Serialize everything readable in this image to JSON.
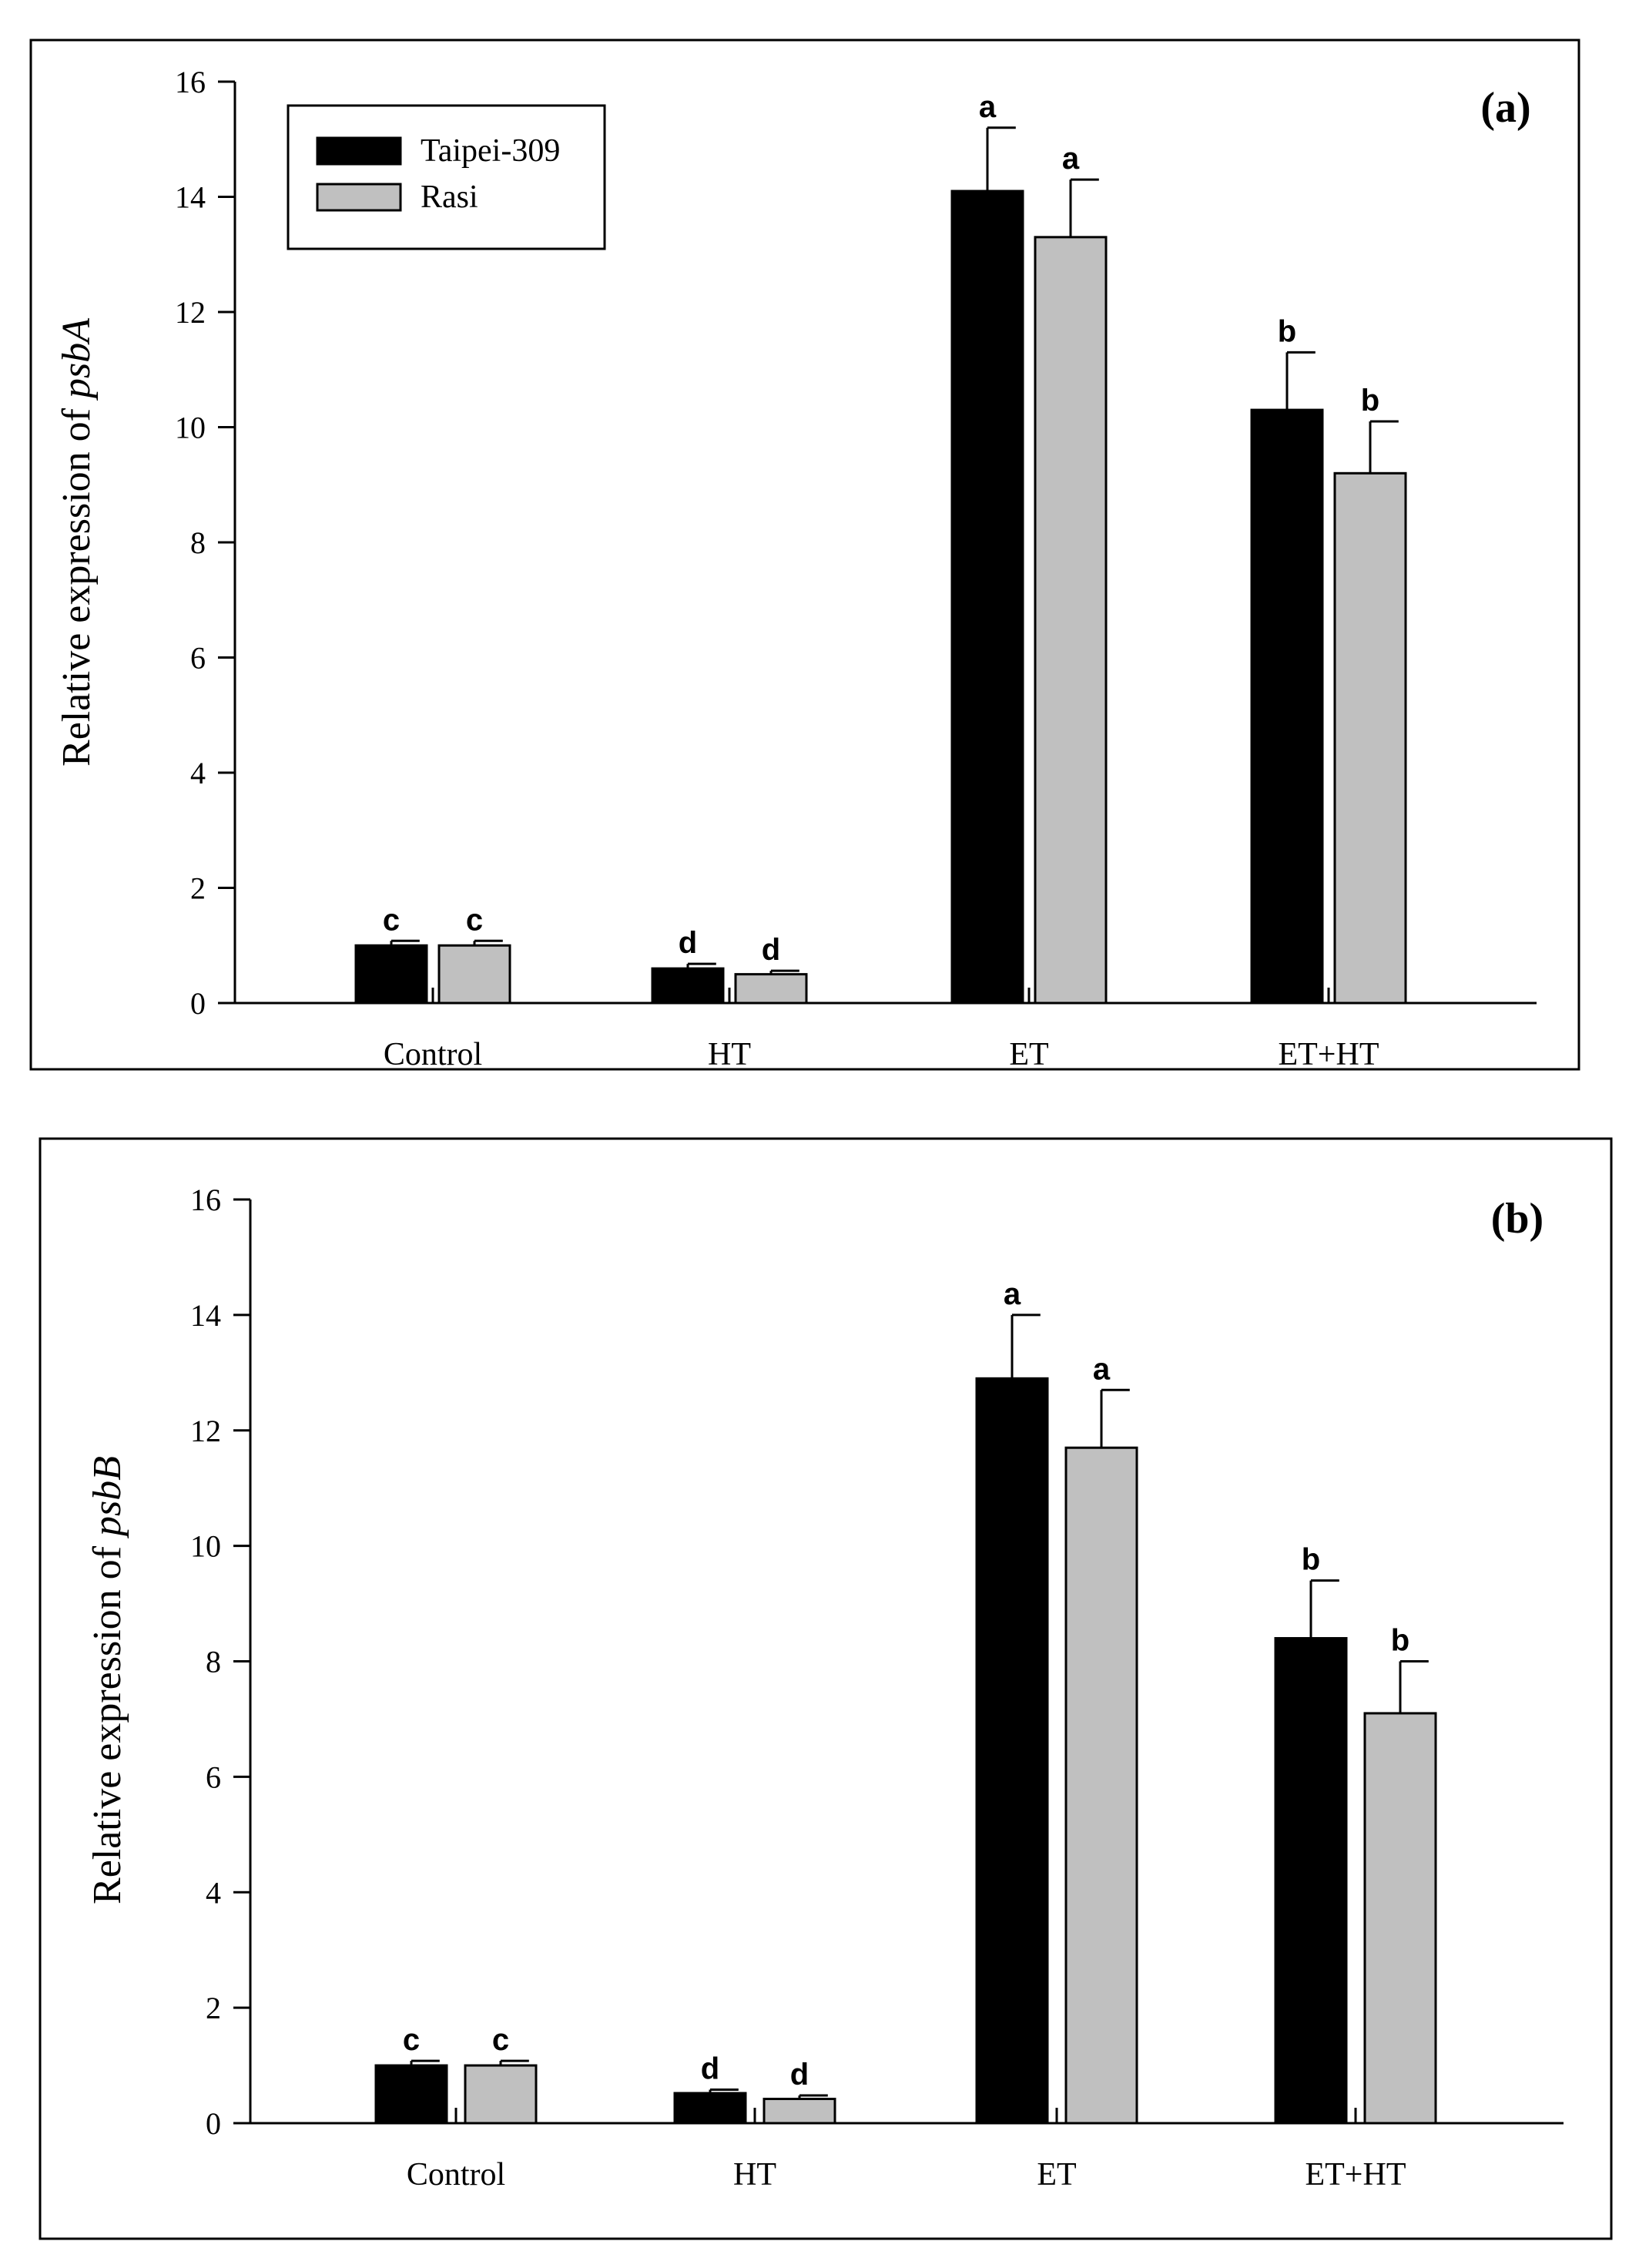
{
  "chart_data": [
    {
      "type": "bar",
      "panel_label": "(a)",
      "ylabel_prefix": "Relative expression of ",
      "ylabel_gene": "psbA",
      "xlabel": "",
      "categories": [
        "Control",
        "HT",
        "ET",
        "ET+HT"
      ],
      "ylim": [
        0,
        16
      ],
      "yticks": [
        "0",
        "2",
        "4",
        "6",
        "8",
        "10",
        "12",
        "14",
        "16"
      ],
      "grid": false,
      "legend_position": "top-left",
      "series": [
        {
          "name": "Taipei-309",
          "color": "#000000",
          "values": [
            1.0,
            0.6,
            14.1,
            10.3
          ],
          "errors": [
            0.08,
            0.08,
            1.1,
            1.0
          ],
          "letters": [
            "c",
            "d",
            "a",
            "b"
          ]
        },
        {
          "name": "Rasi",
          "color": "#c0c0c0",
          "values": [
            1.0,
            0.5,
            13.3,
            9.2
          ],
          "errors": [
            0.08,
            0.06,
            1.0,
            0.9
          ],
          "letters": [
            "c",
            "d",
            "a",
            "b"
          ]
        }
      ]
    },
    {
      "type": "bar",
      "panel_label": "(b)",
      "ylabel_prefix": "Relative expression of ",
      "ylabel_gene": "psbB",
      "xlabel": "",
      "categories": [
        "Control",
        "HT",
        "ET",
        "ET+HT"
      ],
      "ylim": [
        0,
        16
      ],
      "yticks": [
        "0",
        "2",
        "4",
        "6",
        "8",
        "10",
        "12",
        "14",
        "16"
      ],
      "grid": false,
      "series": [
        {
          "name": "Taipei-309",
          "color": "#000000",
          "values": [
            1.0,
            0.52,
            12.9,
            8.4
          ],
          "errors": [
            0.08,
            0.06,
            1.1,
            1.0
          ],
          "letters": [
            "c",
            "d",
            "a",
            "b"
          ]
        },
        {
          "name": "Rasi",
          "color": "#c0c0c0",
          "values": [
            1.0,
            0.42,
            11.7,
            7.1
          ],
          "errors": [
            0.08,
            0.06,
            1.0,
            0.9
          ],
          "letters": [
            "c",
            "d",
            "a",
            "b"
          ]
        }
      ]
    }
  ]
}
